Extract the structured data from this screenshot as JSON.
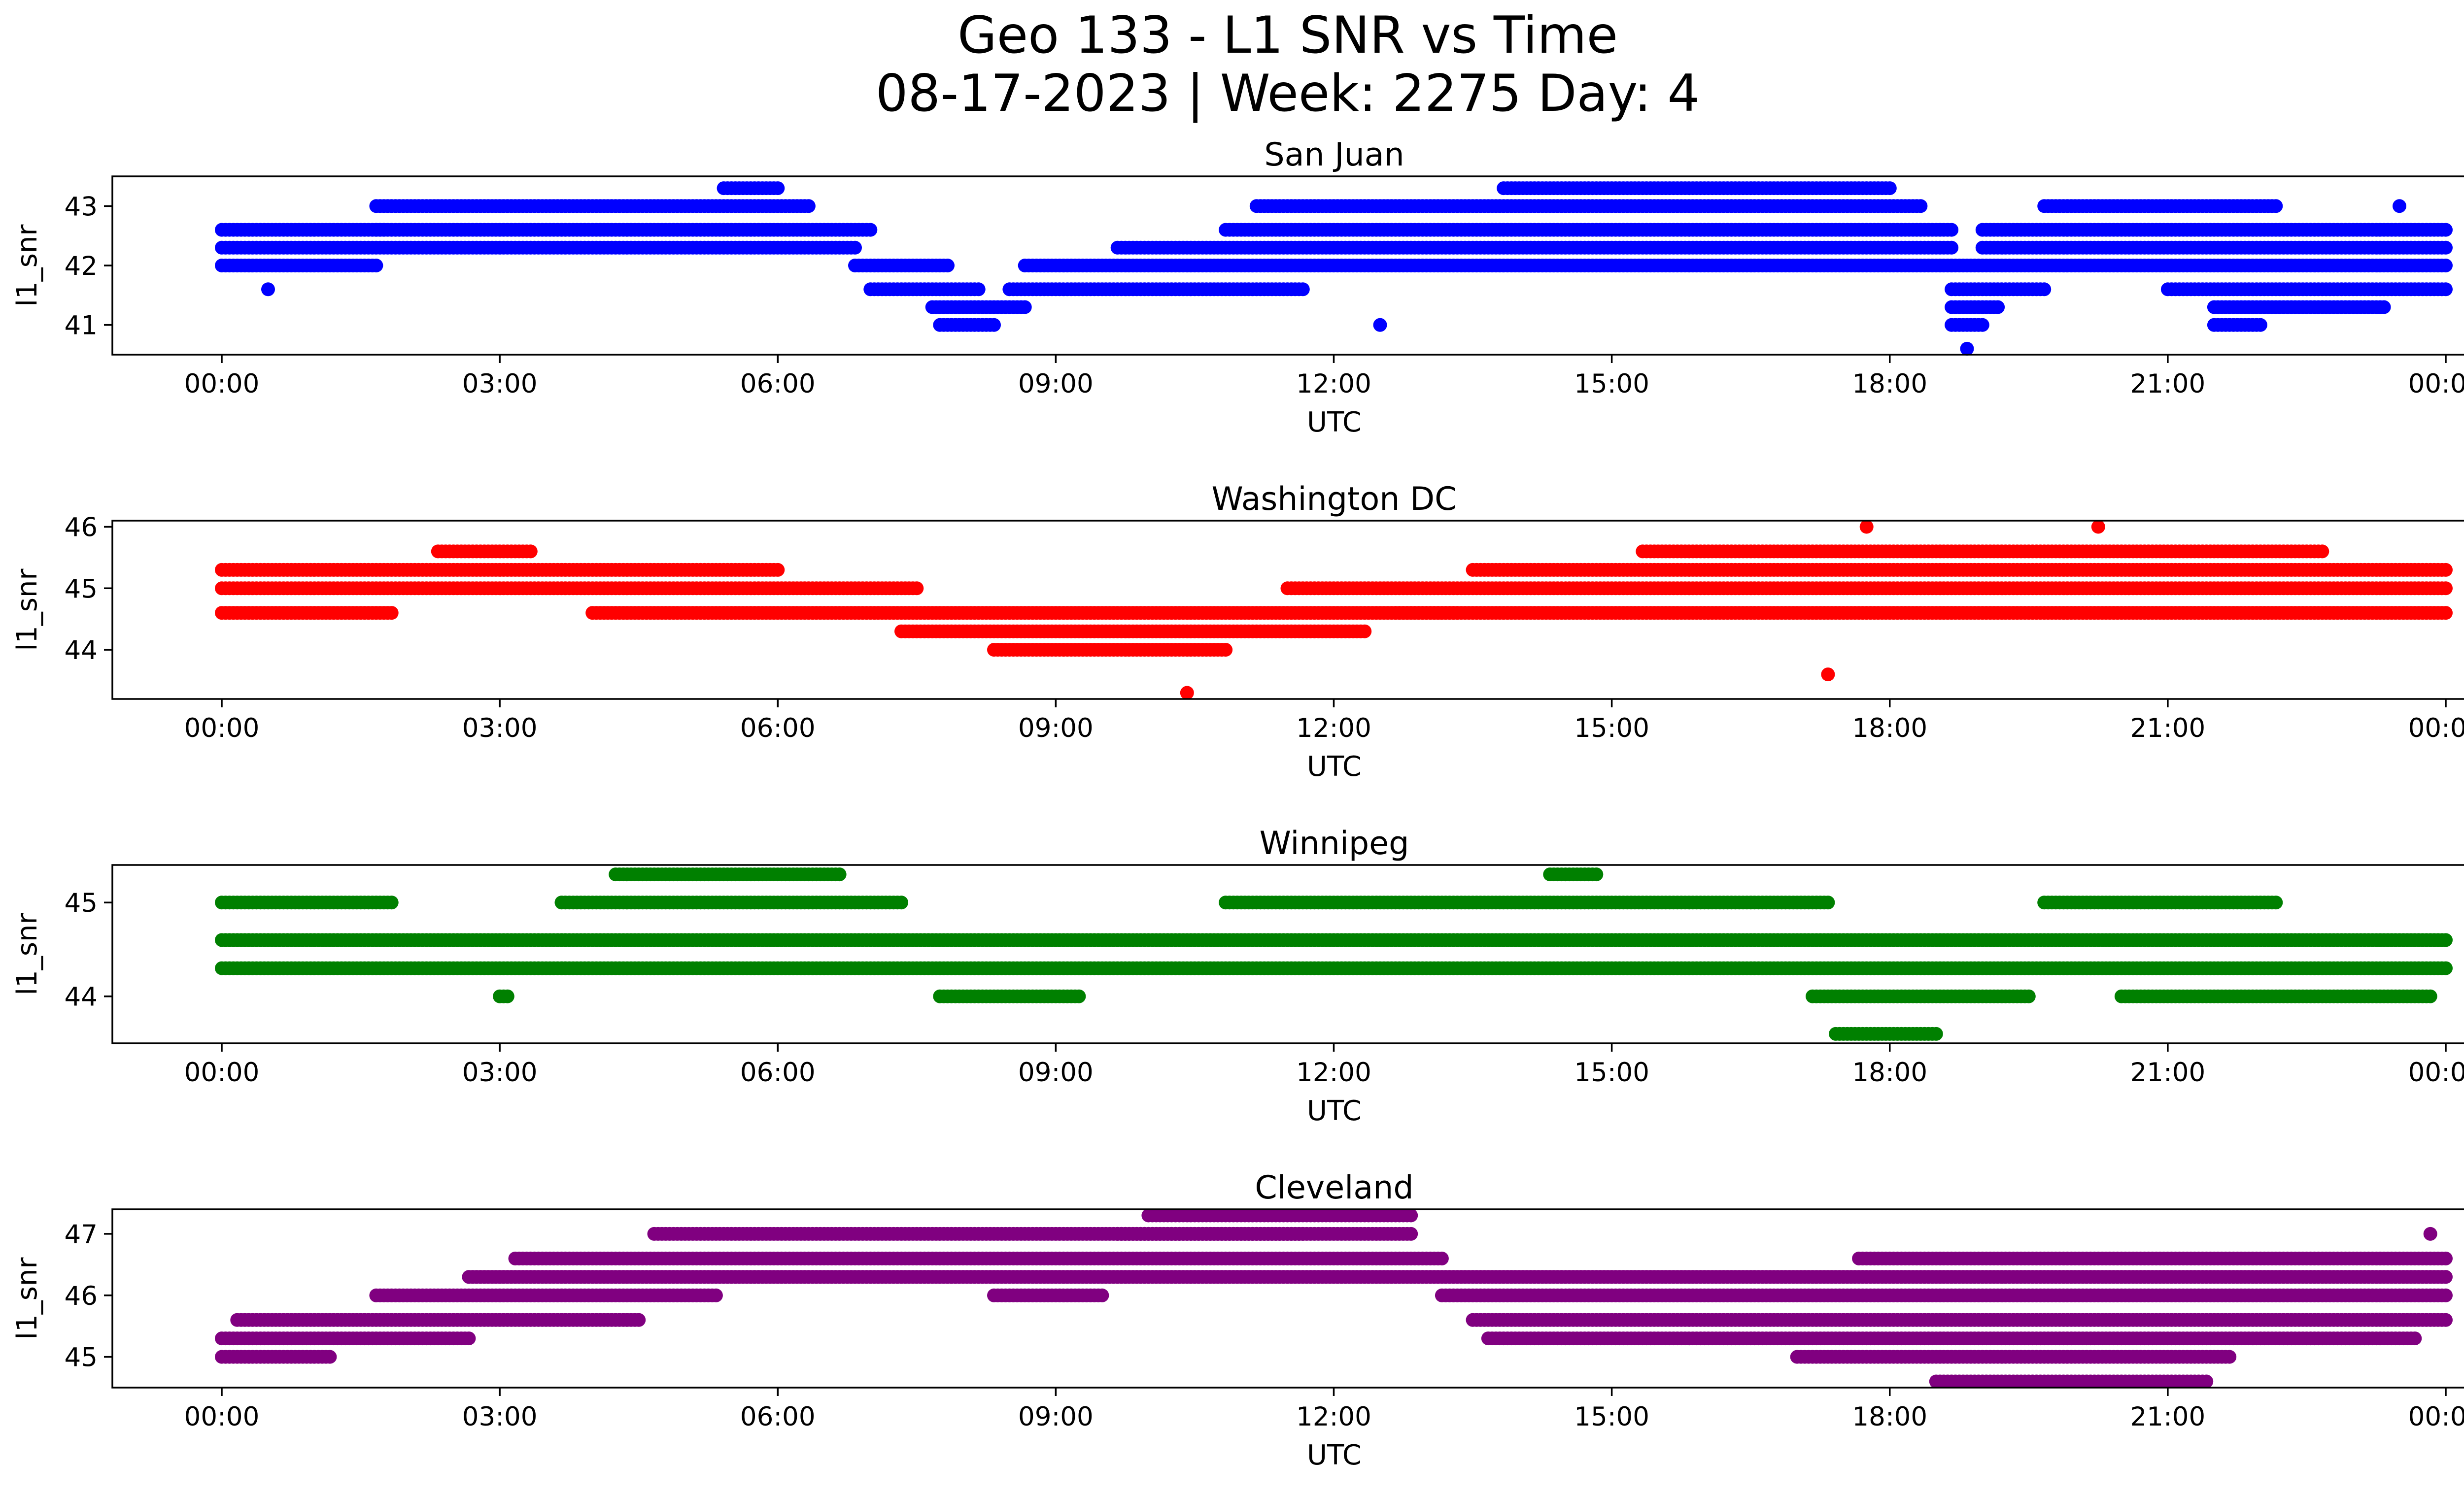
{
  "figure": {
    "title_line1": "Geo 133 - L1 SNR vs Time",
    "title_line2": "08-17-2023 | Week: 2275 Day: 4"
  },
  "chart_data": [
    {
      "type": "scatter",
      "title": "San Juan",
      "xlabel": "UTC",
      "ylabel": "l1_snr",
      "color": "#0000ff",
      "xlim": [
        "00:00",
        "24:00"
      ],
      "ylim": [
        40.5,
        43.5
      ],
      "xtick_labels": [
        "00:00",
        "03:00",
        "06:00",
        "09:00",
        "12:00",
        "15:00",
        "18:00",
        "21:00",
        "00:00"
      ],
      "ytick_labels": [
        "41",
        "42",
        "43"
      ],
      "series": [
        {
          "values": [
            {
              "x_start": "00:00",
              "x_end": "01:45",
              "y": 42.6
            },
            {
              "x_start": "00:00",
              "x_end": "06:50",
              "y": 42.3
            },
            {
              "x_start": "00:00",
              "x_end": "01:40",
              "y": 42.0
            },
            {
              "x_start": "00:30",
              "x_end": "00:30",
              "y": 41.6
            },
            {
              "x_start": "01:40",
              "x_end": "07:00",
              "y": 42.6
            },
            {
              "x_start": "01:40",
              "x_end": "06:20",
              "y": 43.0
            },
            {
              "x_start": "05:25",
              "x_end": "06:00",
              "y": 43.3
            },
            {
              "x_start": "06:50",
              "x_end": "07:50",
              "y": 42.0
            },
            {
              "x_start": "07:00",
              "x_end": "08:10",
              "y": 41.6
            },
            {
              "x_start": "07:40",
              "x_end": "08:40",
              "y": 41.3
            },
            {
              "x_start": "07:45",
              "x_end": "08:20",
              "y": 41.0
            },
            {
              "x_start": "08:40",
              "x_end": "18:40",
              "y": 42.0
            },
            {
              "x_start": "09:40",
              "x_end": "18:40",
              "y": 42.3
            },
            {
              "x_start": "08:30",
              "x_end": "11:40",
              "y": 41.6
            },
            {
              "x_start": "10:50",
              "x_end": "18:40",
              "y": 42.6
            },
            {
              "x_start": "11:10",
              "x_end": "18:20",
              "y": 43.0
            },
            {
              "x_start": "13:50",
              "x_end": "18:00",
              "y": 43.3
            },
            {
              "x_start": "12:30",
              "x_end": "12:30",
              "y": 41.0
            },
            {
              "x_start": "18:40",
              "x_end": "19:40",
              "y": 41.6
            },
            {
              "x_start": "18:40",
              "x_end": "19:10",
              "y": 41.3
            },
            {
              "x_start": "18:40",
              "x_end": "19:00",
              "y": 41.0
            },
            {
              "x_start": "18:50",
              "x_end": "18:50",
              "y": 40.6
            },
            {
              "x_start": "18:40",
              "x_end": "24:00",
              "y": 42.0
            },
            {
              "x_start": "19:00",
              "x_end": "24:00",
              "y": 42.3
            },
            {
              "x_start": "19:00",
              "x_end": "24:00",
              "y": 42.6
            },
            {
              "x_start": "19:40",
              "x_end": "22:10",
              "y": 43.0
            },
            {
              "x_start": "21:00",
              "x_end": "24:00",
              "y": 41.6
            },
            {
              "x_start": "21:30",
              "x_end": "23:20",
              "y": 41.3
            },
            {
              "x_start": "21:30",
              "x_end": "22:00",
              "y": 41.0
            },
            {
              "x_start": "23:30",
              "x_end": "23:30",
              "y": 43.0
            }
          ]
        }
      ]
    },
    {
      "type": "scatter",
      "title": "Washington DC",
      "xlabel": "UTC",
      "ylabel": "l1_snr",
      "color": "#ff0000",
      "xlim": [
        "00:00",
        "24:00"
      ],
      "ylim": [
        43.2,
        46.1
      ],
      "xtick_labels": [
        "00:00",
        "03:00",
        "06:00",
        "09:00",
        "12:00",
        "15:00",
        "18:00",
        "21:00",
        "00:00"
      ],
      "ytick_labels": [
        "44",
        "45",
        "46"
      ],
      "series": [
        {
          "values": [
            {
              "x_start": "00:00",
              "x_end": "06:00",
              "y": 45.3
            },
            {
              "x_start": "00:00",
              "x_end": "07:30",
              "y": 45.0
            },
            {
              "x_start": "00:00",
              "x_end": "01:50",
              "y": 44.6
            },
            {
              "x_start": "02:20",
              "x_end": "03:20",
              "y": 45.6
            },
            {
              "x_start": "04:00",
              "x_end": "13:20",
              "y": 44.6
            },
            {
              "x_start": "07:20",
              "x_end": "12:20",
              "y": 44.3
            },
            {
              "x_start": "08:20",
              "x_end": "10:50",
              "y": 44.0
            },
            {
              "x_start": "10:25",
              "x_end": "10:25",
              "y": 43.3
            },
            {
              "x_start": "11:30",
              "x_end": "24:00",
              "y": 45.0
            },
            {
              "x_start": "13:30",
              "x_end": "24:00",
              "y": 45.3
            },
            {
              "x_start": "15:20",
              "x_end": "22:40",
              "y": 45.6
            },
            {
              "x_start": "12:40",
              "x_end": "24:00",
              "y": 44.6
            },
            {
              "x_start": "17:45",
              "x_end": "17:45",
              "y": 46.0
            },
            {
              "x_start": "20:15",
              "x_end": "20:15",
              "y": 46.0
            },
            {
              "x_start": "17:20",
              "x_end": "17:20",
              "y": 43.6
            }
          ]
        }
      ]
    },
    {
      "type": "scatter",
      "title": "Winnipeg",
      "xlabel": "UTC",
      "ylabel": "l1_snr",
      "color": "#008000",
      "xlim": [
        "00:00",
        "24:00"
      ],
      "ylim": [
        43.5,
        45.4
      ],
      "xtick_labels": [
        "00:00",
        "03:00",
        "06:00",
        "09:00",
        "12:00",
        "15:00",
        "18:00",
        "21:00",
        "00:00"
      ],
      "ytick_labels": [
        "44",
        "45"
      ],
      "series": [
        {
          "values": [
            {
              "x_start": "00:00",
              "x_end": "24:00",
              "y": 44.6
            },
            {
              "x_start": "00:00",
              "x_end": "24:00",
              "y": 44.3
            },
            {
              "x_start": "00:00",
              "x_end": "01:50",
              "y": 45.0
            },
            {
              "x_start": "03:40",
              "x_end": "07:20",
              "y": 45.0
            },
            {
              "x_start": "10:50",
              "x_end": "17:20",
              "y": 45.0
            },
            {
              "x_start": "19:40",
              "x_end": "22:10",
              "y": 45.0
            },
            {
              "x_start": "04:15",
              "x_end": "06:40",
              "y": 45.3
            },
            {
              "x_start": "14:20",
              "x_end": "14:50",
              "y": 45.3
            },
            {
              "x_start": "03:00",
              "x_end": "03:05",
              "y": 44.0
            },
            {
              "x_start": "07:45",
              "x_end": "09:15",
              "y": 44.0
            },
            {
              "x_start": "17:10",
              "x_end": "19:30",
              "y": 44.0
            },
            {
              "x_start": "20:30",
              "x_end": "23:50",
              "y": 44.0
            },
            {
              "x_start": "17:25",
              "x_end": "18:30",
              "y": 43.6
            }
          ]
        }
      ]
    },
    {
      "type": "scatter",
      "title": "Cleveland",
      "xlabel": "UTC",
      "ylabel": "l1_snr",
      "color": "#800080",
      "xlim": [
        "00:00",
        "24:00"
      ],
      "ylim": [
        44.5,
        47.4
      ],
      "xtick_labels": [
        "00:00",
        "03:00",
        "06:00",
        "09:00",
        "12:00",
        "15:00",
        "18:00",
        "21:00",
        "00:00"
      ],
      "ytick_labels": [
        "45",
        "46",
        "47"
      ],
      "series": [
        {
          "values": [
            {
              "x_start": "00:00",
              "x_end": "01:10",
              "y": 45.0
            },
            {
              "x_start": "00:00",
              "x_end": "02:40",
              "y": 45.3
            },
            {
              "x_start": "00:10",
              "x_end": "04:30",
              "y": 45.6
            },
            {
              "x_start": "01:40",
              "x_end": "05:20",
              "y": 46.0
            },
            {
              "x_start": "02:40",
              "x_end": "24:00",
              "y": 46.3
            },
            {
              "x_start": "03:10",
              "x_end": "13:10",
              "y": 46.6
            },
            {
              "x_start": "04:40",
              "x_end": "11:40",
              "y": 47.0
            },
            {
              "x_start": "09:40",
              "x_end": "12:50",
              "y": 47.0
            },
            {
              "x_start": "10:00",
              "x_end": "12:50",
              "y": 47.3
            },
            {
              "x_start": "08:20",
              "x_end": "09:30",
              "y": 46.0
            },
            {
              "x_start": "13:10",
              "x_end": "24:00",
              "y": 46.0
            },
            {
              "x_start": "13:30",
              "x_end": "24:00",
              "y": 45.6
            },
            {
              "x_start": "13:40",
              "x_end": "23:40",
              "y": 45.3
            },
            {
              "x_start": "17:00",
              "x_end": "21:40",
              "y": 45.0
            },
            {
              "x_start": "18:30",
              "x_end": "21:25",
              "y": 44.6
            },
            {
              "x_start": "17:40",
              "x_end": "24:00",
              "y": 46.6
            },
            {
              "x_start": "23:50",
              "x_end": "23:50",
              "y": 47.0
            }
          ]
        }
      ]
    }
  ]
}
